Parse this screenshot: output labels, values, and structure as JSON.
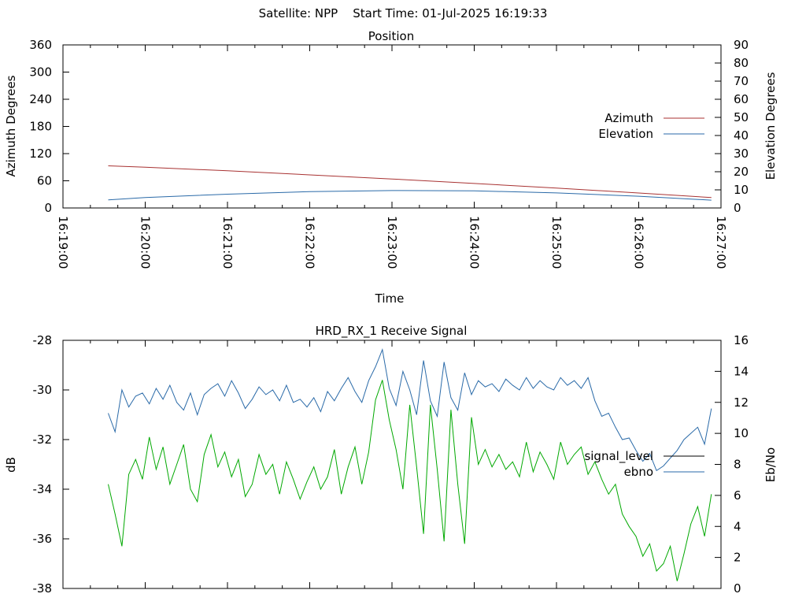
{
  "header": {
    "title": "Satellite: NPP    Start Time: 01-Jul-2025 16:19:33"
  },
  "colors": {
    "azimuth": "#a83232",
    "elevation": "#2a6aa8",
    "signal_level": "#00a800",
    "ebno": "#2a6aa8",
    "legend_signal_level_swatch": "#000000"
  },
  "chart_data": [
    {
      "type": "line",
      "title": "Position",
      "xlabel": "Time",
      "ylabel": "Azimuth Degrees",
      "y2label": "Elevation Degrees",
      "xlim": [
        "16:19:00",
        "16:27:00"
      ],
      "ylim": [
        0,
        360
      ],
      "y2lim": [
        0,
        90
      ],
      "x_ticks": [
        "16:19:00",
        "16:20:00",
        "16:21:00",
        "16:22:00",
        "16:23:00",
        "16:24:00",
        "16:25:00",
        "16:26:00",
        "16:27:00"
      ],
      "y_ticks": [
        "0",
        "60",
        "120",
        "180",
        "240",
        "300",
        "360"
      ],
      "y2_ticks": [
        "0",
        "10",
        "20",
        "30",
        "40",
        "50",
        "60",
        "70",
        "80",
        "90"
      ],
      "legend": "right",
      "grid": false,
      "series": [
        {
          "name": "Azimuth",
          "axis": "y",
          "x": [
            "16:19:33",
            "16:20:00",
            "16:21:00",
            "16:22:00",
            "16:23:00",
            "16:24:00",
            "16:25:00",
            "16:26:00",
            "16:26:53"
          ],
          "values": [
            93,
            90,
            82,
            73,
            64,
            54,
            44,
            33,
            23
          ]
        },
        {
          "name": "Elevation",
          "axis": "y2",
          "x": [
            "16:19:33",
            "16:20:00",
            "16:21:00",
            "16:22:00",
            "16:23:00",
            "16:24:00",
            "16:25:00",
            "16:26:00",
            "16:26:53"
          ],
          "values": [
            4.5,
            5.8,
            7.6,
            9.0,
            9.6,
            9.5,
            8.3,
            6.5,
            4.3
          ]
        }
      ]
    },
    {
      "type": "line",
      "title": "HRD_RX_1 Receive Signal",
      "xlabel": "",
      "ylabel": "dB",
      "y2label": "Eb/No",
      "xlim": [
        "16:19:00",
        "16:27:00"
      ],
      "ylim": [
        -38,
        -28
      ],
      "y2lim": [
        0,
        16
      ],
      "y_ticks": [
        "-38",
        "-36",
        "-34",
        "-32",
        "-30",
        "-28"
      ],
      "y2_ticks": [
        "0",
        "2",
        "4",
        "6",
        "8",
        "10",
        "12",
        "14",
        "16"
      ],
      "legend": "right",
      "grid": false,
      "series": [
        {
          "name": "signal_level",
          "axis": "y",
          "x": [
            "16:19:33",
            "16:19:38",
            "16:19:43",
            "16:19:48",
            "16:19:53",
            "16:19:58",
            "16:20:03",
            "16:20:08",
            "16:20:13",
            "16:20:18",
            "16:20:23",
            "16:20:28",
            "16:20:33",
            "16:20:38",
            "16:20:43",
            "16:20:48",
            "16:20:53",
            "16:20:58",
            "16:21:03",
            "16:21:08",
            "16:21:13",
            "16:21:18",
            "16:21:23",
            "16:21:28",
            "16:21:33",
            "16:21:38",
            "16:21:43",
            "16:21:48",
            "16:21:53",
            "16:21:58",
            "16:22:03",
            "16:22:08",
            "16:22:13",
            "16:22:18",
            "16:22:23",
            "16:22:28",
            "16:22:33",
            "16:22:38",
            "16:22:43",
            "16:22:48",
            "16:22:53",
            "16:22:58",
            "16:23:03",
            "16:23:08",
            "16:23:13",
            "16:23:18",
            "16:23:23",
            "16:23:28",
            "16:23:33",
            "16:23:38",
            "16:23:43",
            "16:23:48",
            "16:23:53",
            "16:23:58",
            "16:24:03",
            "16:24:08",
            "16:24:13",
            "16:24:18",
            "16:24:23",
            "16:24:28",
            "16:24:33",
            "16:24:38",
            "16:24:43",
            "16:24:48",
            "16:24:53",
            "16:24:58",
            "16:25:03",
            "16:25:08",
            "16:25:13",
            "16:25:18",
            "16:25:23",
            "16:25:28",
            "16:25:33",
            "16:25:38",
            "16:25:43",
            "16:25:48",
            "16:25:53",
            "16:25:58",
            "16:26:03",
            "16:26:08",
            "16:26:13",
            "16:26:18",
            "16:26:23",
            "16:26:28",
            "16:26:33",
            "16:26:38",
            "16:26:43",
            "16:26:48",
            "16:26:53"
          ],
          "values": [
            -33.8,
            -35.0,
            -36.3,
            -33.4,
            -32.8,
            -33.6,
            -31.9,
            -33.2,
            -32.3,
            -33.8,
            -33.0,
            -32.2,
            -34.0,
            -34.5,
            -32.6,
            -31.8,
            -33.1,
            -32.5,
            -33.5,
            -32.8,
            -34.3,
            -33.8,
            -32.6,
            -33.4,
            -33.0,
            -34.2,
            -32.9,
            -33.6,
            -34.4,
            -33.7,
            -33.1,
            -34.0,
            -33.5,
            -32.4,
            -34.2,
            -33.1,
            -32.3,
            -33.8,
            -32.5,
            -30.4,
            -29.6,
            -31.2,
            -32.4,
            -34.0,
            -30.6,
            -33.1,
            -35.8,
            -30.6,
            -33.2,
            -36.1,
            -30.8,
            -33.8,
            -36.2,
            -31.1,
            -33.0,
            -32.4,
            -33.1,
            -32.6,
            -33.2,
            -32.9,
            -33.5,
            -32.1,
            -33.3,
            -32.5,
            -33.0,
            -33.6,
            -32.1,
            -33.0,
            -32.6,
            -32.3,
            -33.4,
            -32.9,
            -33.6,
            -34.2,
            -33.8,
            -35.0,
            -35.5,
            -35.9,
            -36.7,
            -36.2,
            -37.3,
            -37.0,
            -36.3,
            -37.7,
            -36.6,
            -35.4,
            -34.7,
            -35.9,
            -34.2
          ]
        },
        {
          "name": "ebno",
          "axis": "y2",
          "x": [
            "16:19:33",
            "16:19:38",
            "16:19:43",
            "16:19:48",
            "16:19:53",
            "16:19:58",
            "16:20:03",
            "16:20:08",
            "16:20:13",
            "16:20:18",
            "16:20:23",
            "16:20:28",
            "16:20:33",
            "16:20:38",
            "16:20:43",
            "16:20:48",
            "16:20:53",
            "16:20:58",
            "16:21:03",
            "16:21:08",
            "16:21:13",
            "16:21:18",
            "16:21:23",
            "16:21:28",
            "16:21:33",
            "16:21:38",
            "16:21:43",
            "16:21:48",
            "16:21:53",
            "16:21:58",
            "16:22:03",
            "16:22:08",
            "16:22:13",
            "16:22:18",
            "16:22:23",
            "16:22:28",
            "16:22:33",
            "16:22:38",
            "16:22:43",
            "16:22:48",
            "16:22:53",
            "16:22:58",
            "16:23:03",
            "16:23:08",
            "16:23:13",
            "16:23:18",
            "16:23:23",
            "16:23:28",
            "16:23:33",
            "16:23:38",
            "16:23:43",
            "16:23:48",
            "16:23:53",
            "16:23:58",
            "16:24:03",
            "16:24:08",
            "16:24:13",
            "16:24:18",
            "16:24:23",
            "16:24:28",
            "16:24:33",
            "16:24:38",
            "16:24:43",
            "16:24:48",
            "16:24:53",
            "16:24:58",
            "16:25:03",
            "16:25:08",
            "16:25:13",
            "16:25:18",
            "16:25:23",
            "16:25:28",
            "16:25:33",
            "16:25:38",
            "16:25:43",
            "16:25:48",
            "16:25:53",
            "16:25:58",
            "16:26:03",
            "16:26:08",
            "16:26:13",
            "16:26:18",
            "16:26:23",
            "16:26:28",
            "16:26:33",
            "16:26:38",
            "16:26:43",
            "16:26:48",
            "16:26:53"
          ],
          "values": [
            11.3,
            10.1,
            12.8,
            11.7,
            12.4,
            12.6,
            11.9,
            12.9,
            12.2,
            13.1,
            12.0,
            11.5,
            12.6,
            11.2,
            12.5,
            12.9,
            13.2,
            12.4,
            13.4,
            12.6,
            11.6,
            12.2,
            13.0,
            12.5,
            12.8,
            12.1,
            13.1,
            12.0,
            12.2,
            11.7,
            12.3,
            11.4,
            12.7,
            12.1,
            12.9,
            13.6,
            12.7,
            12.0,
            13.4,
            14.3,
            15.4,
            12.9,
            11.8,
            14.0,
            12.8,
            11.2,
            14.7,
            12.1,
            11.1,
            14.6,
            12.3,
            11.5,
            13.9,
            12.5,
            13.4,
            13.0,
            13.2,
            12.7,
            13.5,
            13.1,
            12.8,
            13.6,
            12.9,
            13.4,
            13.0,
            12.8,
            13.6,
            13.1,
            13.4,
            12.9,
            13.6,
            12.1,
            11.1,
            11.3,
            10.4,
            9.6,
            9.7,
            8.9,
            8.2,
            8.7,
            7.6,
            7.9,
            8.4,
            8.9,
            9.6,
            10.0,
            10.4,
            9.3,
            11.6
          ]
        }
      ]
    }
  ]
}
